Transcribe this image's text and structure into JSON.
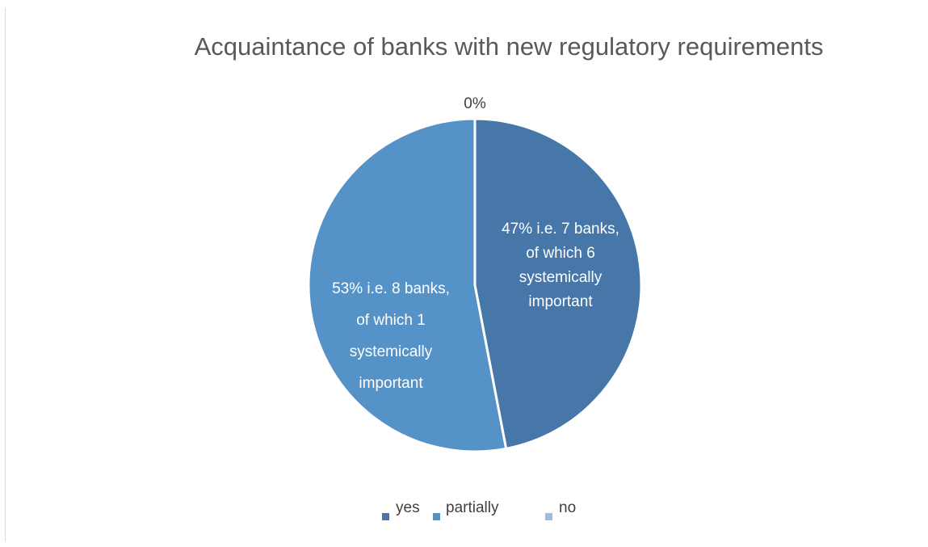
{
  "chart_data": {
    "type": "pie",
    "title": "Acquaintance of banks with new regulatory requirements",
    "categories": [
      "yes",
      "partially",
      "no"
    ],
    "values": [
      47,
      53,
      0
    ],
    "colors": [
      "#4677a8",
      "#5592c8",
      "#9bbde0"
    ],
    "data_labels": [
      [
        "47% i.e. 7 banks,",
        "of which 6",
        "systemically",
        "important"
      ],
      [
        "53% i.e.  8 banks,",
        "of which 1",
        "systemically",
        "important"
      ],
      [
        "0%"
      ]
    ],
    "legend_position": "bottom"
  }
}
